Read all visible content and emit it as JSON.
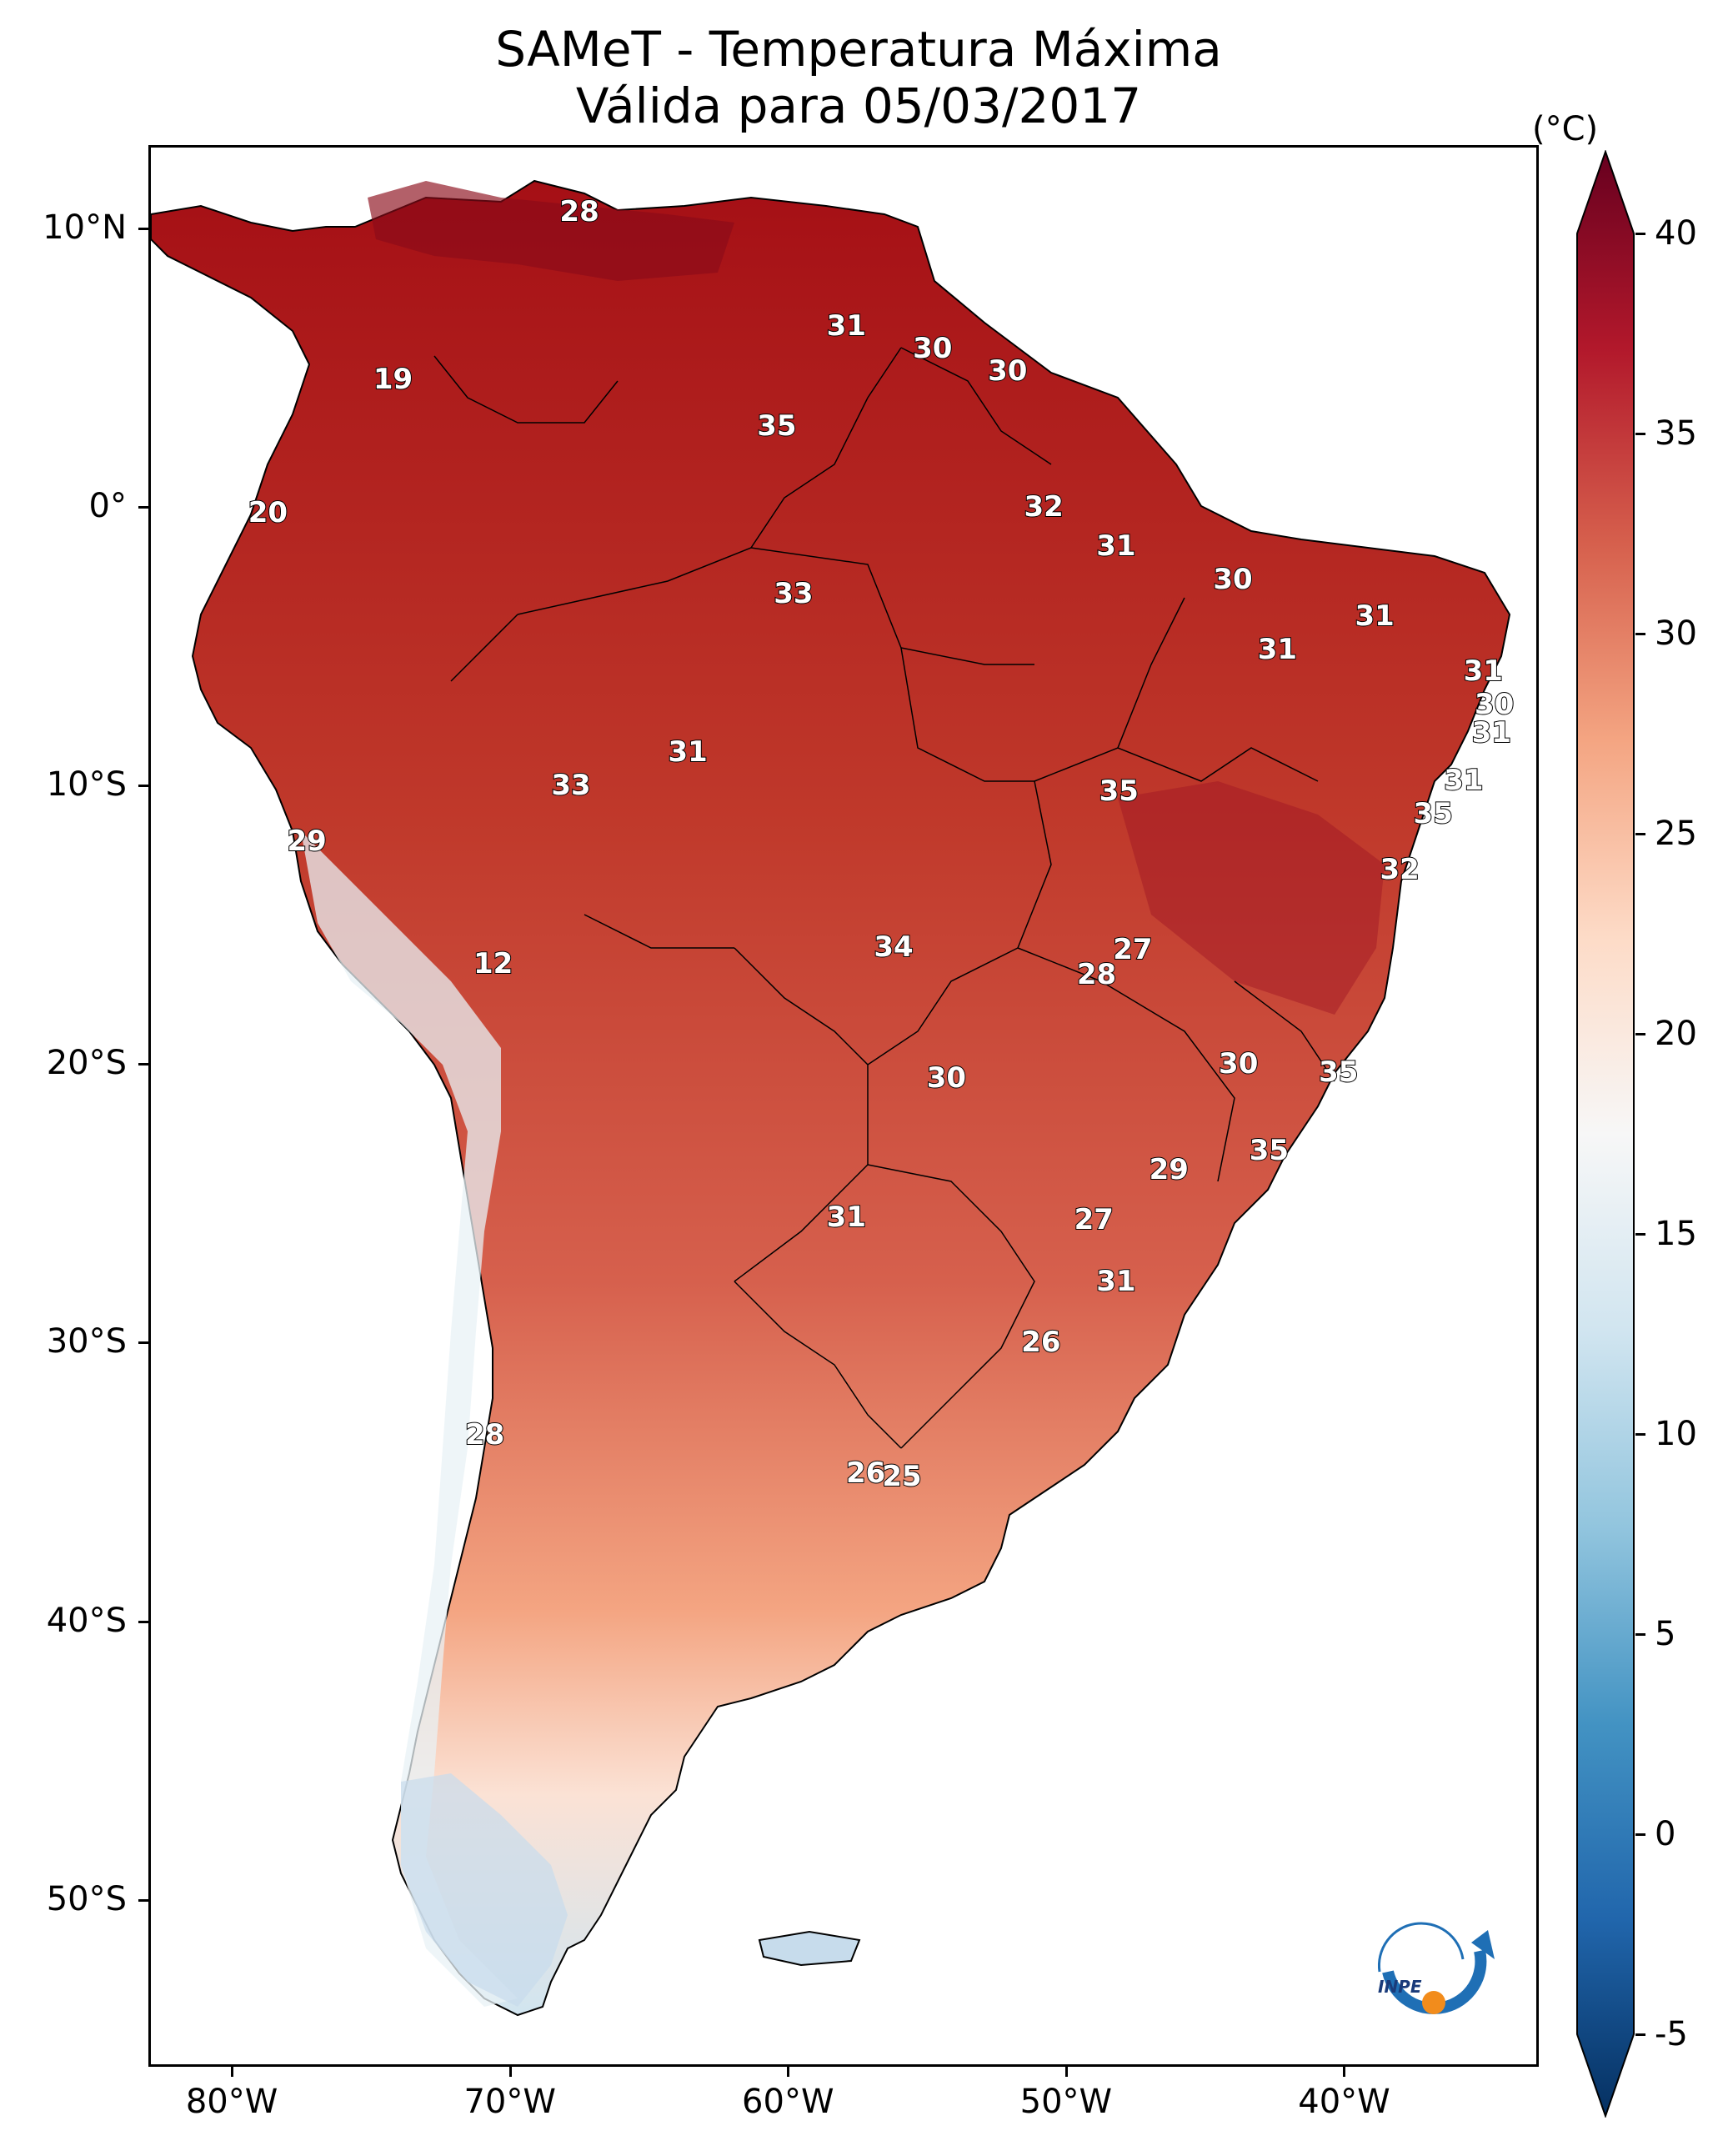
{
  "title": {
    "line1": "SAMeT - Temperatura Máxima",
    "line2": "Válida para 05/03/2017"
  },
  "lat_axis": [
    {
      "label": "10°N",
      "value": 10
    },
    {
      "label": "0°",
      "value": 0
    },
    {
      "label": "10°S",
      "value": -10
    },
    {
      "label": "20°S",
      "value": -20
    },
    {
      "label": "30°S",
      "value": -30
    },
    {
      "label": "40°S",
      "value": -40
    },
    {
      "label": "50°S",
      "value": -50
    }
  ],
  "lon_axis": [
    {
      "label": "80°W",
      "value": -80
    },
    {
      "label": "70°W",
      "value": -70
    },
    {
      "label": "60°W",
      "value": -60
    },
    {
      "label": "50°W",
      "value": -50
    },
    {
      "label": "40°W",
      "value": -40
    }
  ],
  "map_extent": {
    "lon_min": -83,
    "lon_max": -33,
    "lat_min": -56,
    "lat_max": 13
  },
  "colorbar": {
    "unit": "(°C)",
    "min": -5,
    "max": 40,
    "ticks": [
      "40",
      "35",
      "30",
      "25",
      "20",
      "15",
      "10",
      "5",
      "0",
      "-5"
    ],
    "colors": [
      "#053061",
      "#2166ac",
      "#4393c3",
      "#92c5de",
      "#d1e5f0",
      "#f7f7f7",
      "#fddbc7",
      "#f4a582",
      "#d6604d",
      "#b2182b",
      "#67001f"
    ],
    "extend": "both"
  },
  "contour_labels": [
    {
      "text": "28",
      "lon": -67.5,
      "lat": 10.6
    },
    {
      "text": "19",
      "lon": -74.2,
      "lat": 4.6
    },
    {
      "text": "31",
      "lon": -57.9,
      "lat": 6.5
    },
    {
      "text": "30",
      "lon": -54.8,
      "lat": 5.7
    },
    {
      "text": "30",
      "lon": -52.1,
      "lat": 4.9
    },
    {
      "text": "35",
      "lon": -60.4,
      "lat": 2.9
    },
    {
      "text": "20",
      "lon": -78.7,
      "lat": -0.2
    },
    {
      "text": "32",
      "lon": -50.8,
      "lat": 0.0
    },
    {
      "text": "31",
      "lon": -48.2,
      "lat": -1.4
    },
    {
      "text": "30",
      "lon": -44.0,
      "lat": -2.6
    },
    {
      "text": "33",
      "lon": -59.8,
      "lat": -3.1
    },
    {
      "text": "31",
      "lon": -38.9,
      "lat": -3.9
    },
    {
      "text": "31",
      "lon": -42.4,
      "lat": -5.1
    },
    {
      "text": "31",
      "lon": -35.0,
      "lat": -5.9
    },
    {
      "text": "30",
      "lon": -34.6,
      "lat": -7.1
    },
    {
      "text": "31",
      "lon": -34.7,
      "lat": -8.1
    },
    {
      "text": "31",
      "lon": -63.6,
      "lat": -8.8
    },
    {
      "text": "33",
      "lon": -67.8,
      "lat": -10.0
    },
    {
      "text": "35",
      "lon": -48.1,
      "lat": -10.2
    },
    {
      "text": "31",
      "lon": -35.7,
      "lat": -9.8
    },
    {
      "text": "35",
      "lon": -36.8,
      "lat": -11.0
    },
    {
      "text": "29",
      "lon": -77.3,
      "lat": -12.0
    },
    {
      "text": "32",
      "lon": -38.0,
      "lat": -13.0
    },
    {
      "text": "34",
      "lon": -56.2,
      "lat": -15.8
    },
    {
      "text": "27",
      "lon": -47.6,
      "lat": -15.9
    },
    {
      "text": "28",
      "lon": -48.9,
      "lat": -16.8
    },
    {
      "text": "12",
      "lon": -70.6,
      "lat": -16.4
    },
    {
      "text": "30",
      "lon": -43.8,
      "lat": -20.0
    },
    {
      "text": "35",
      "lon": -40.2,
      "lat": -20.3
    },
    {
      "text": "30",
      "lon": -54.3,
      "lat": -20.5
    },
    {
      "text": "35",
      "lon": -42.7,
      "lat": -23.1
    },
    {
      "text": "29",
      "lon": -46.3,
      "lat": -23.8
    },
    {
      "text": "31",
      "lon": -57.9,
      "lat": -25.5
    },
    {
      "text": "27",
      "lon": -49.0,
      "lat": -25.6
    },
    {
      "text": "31",
      "lon": -48.2,
      "lat": -27.8
    },
    {
      "text": "26",
      "lon": -50.9,
      "lat": -30.0
    },
    {
      "text": "28",
      "lon": -70.9,
      "lat": -33.3
    },
    {
      "text": "26",
      "lon": -57.2,
      "lat": -34.7
    },
    {
      "text": "25",
      "lon": -55.9,
      "lat": -34.8
    }
  ],
  "logo": {
    "text": "INPE"
  }
}
